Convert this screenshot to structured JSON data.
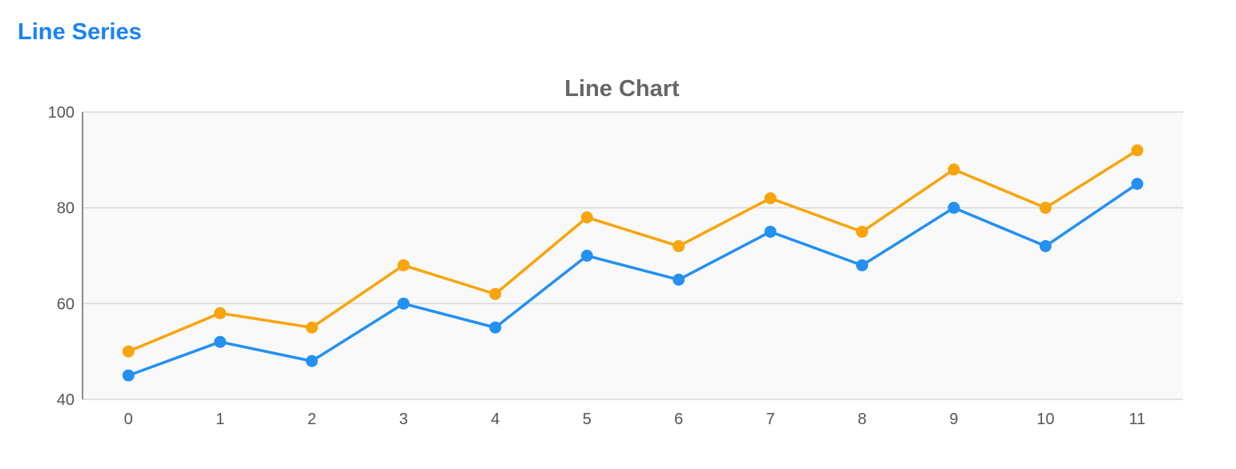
{
  "page": {
    "heading": "Line Series",
    "accent_color": "#1a82f7"
  },
  "chart_data": {
    "type": "line",
    "title": "Line Chart",
    "xlabel": "",
    "ylabel": "",
    "categories": [
      "0",
      "1",
      "2",
      "3",
      "4",
      "5",
      "6",
      "7",
      "8",
      "9",
      "10",
      "11"
    ],
    "x": [
      0,
      1,
      2,
      3,
      4,
      5,
      6,
      7,
      8,
      9,
      10,
      11
    ],
    "ylim": [
      40,
      100
    ],
    "yticks": [
      40,
      60,
      80,
      100
    ],
    "grid": true,
    "legend": "none",
    "plot_background": "#f9f9f9",
    "series": [
      {
        "color": "#f9a40a",
        "values": [
          50,
          58,
          55,
          68,
          62,
          78,
          72,
          82,
          75,
          88,
          80,
          92
        ]
      },
      {
        "color": "#2390f2",
        "values": [
          45,
          52,
          48,
          60,
          55,
          70,
          65,
          75,
          68,
          80,
          72,
          85
        ]
      }
    ]
  }
}
